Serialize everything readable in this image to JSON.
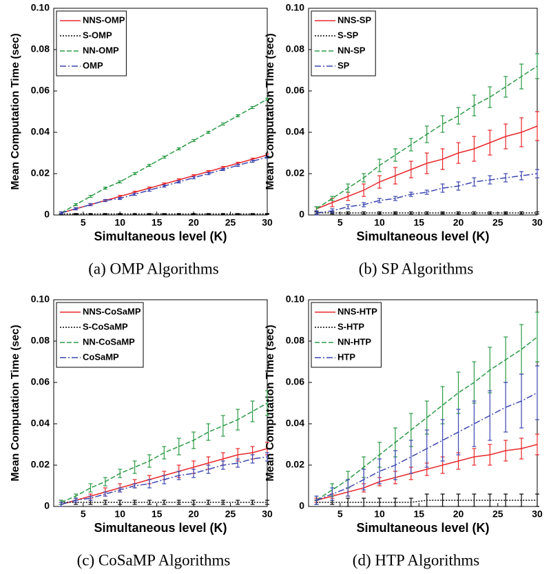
{
  "chart_data": [
    {
      "type": "line",
      "caption": "(a) OMP Algorithms",
      "xlabel": "Simultaneous level (K)",
      "ylabel": "Mean  Computation  Time  (sec)",
      "x": [
        2,
        4,
        6,
        8,
        10,
        12,
        14,
        16,
        18,
        20,
        22,
        24,
        26,
        28,
        30
      ],
      "xlim": [
        1,
        30
      ],
      "xticks": [
        5,
        10,
        15,
        20,
        25,
        30
      ],
      "ylim": [
        0,
        0.1
      ],
      "yticks": [
        0,
        0.02,
        0.04,
        0.06,
        0.08,
        {
          "value": 0.1,
          "label": "0.10"
        }
      ],
      "legend": "upper left",
      "series": [
        {
          "name": "NNS-OMP",
          "color": "#e8262a",
          "dash": "solid",
          "values": [
            0.001,
            0.003,
            0.005,
            0.007,
            0.009,
            0.011,
            0.013,
            0.015,
            0.017,
            0.019,
            0.021,
            0.023,
            0.025,
            0.027,
            0.029
          ],
          "errors": [
            0.0005,
            0.0005,
            0.0005,
            0.0005,
            0.0005,
            0.0005,
            0.0005,
            0.0005,
            0.0005,
            0.0005,
            0.0005,
            0.0005,
            0.0005,
            0.0005,
            0.0005
          ]
        },
        {
          "name": "S-OMP",
          "color": "#000000",
          "dash": "dotted",
          "values": [
            0.0005,
            0.0005,
            0.0005,
            0.0005,
            0.0005,
            0.0005,
            0.0005,
            0.0005,
            0.0005,
            0.0005,
            0.0005,
            0.0005,
            0.0005,
            0.0005,
            0.0005
          ],
          "errors": [
            0.0002,
            0.0002,
            0.0002,
            0.0002,
            0.0002,
            0.0002,
            0.0002,
            0.0002,
            0.0002,
            0.0002,
            0.0002,
            0.0002,
            0.0002,
            0.0002,
            0.0002
          ]
        },
        {
          "name": "NN-OMP",
          "color": "#2a9a45",
          "dash": "dashed",
          "values": [
            0.001,
            0.005,
            0.009,
            0.013,
            0.016,
            0.02,
            0.024,
            0.028,
            0.032,
            0.036,
            0.04,
            0.044,
            0.048,
            0.052,
            0.056
          ],
          "errors": [
            0.0005,
            0.0005,
            0.0005,
            0.0005,
            0.0005,
            0.0005,
            0.0005,
            0.0005,
            0.0005,
            0.0005,
            0.0005,
            0.0005,
            0.0005,
            0.0005,
            0.0005
          ]
        },
        {
          "name": "OMP",
          "color": "#3a45b0",
          "dash": "dashdot",
          "values": [
            0.001,
            0.003,
            0.005,
            0.007,
            0.008,
            0.01,
            0.012,
            0.014,
            0.016,
            0.018,
            0.02,
            0.022,
            0.024,
            0.026,
            0.028
          ],
          "errors": [
            0.0005,
            0.0005,
            0.0005,
            0.0005,
            0.0005,
            0.0005,
            0.0005,
            0.0005,
            0.0005,
            0.0005,
            0.0005,
            0.0005,
            0.0005,
            0.0005,
            0.0005
          ]
        }
      ]
    },
    {
      "type": "line",
      "caption": "(b) SP Algorithms",
      "xlabel": "Simultaneous level (K)",
      "ylabel": "Mean  Computation  Time  (sec)",
      "x": [
        2,
        4,
        6,
        8,
        10,
        12,
        14,
        16,
        18,
        20,
        22,
        24,
        26,
        28,
        30
      ],
      "xlim": [
        1,
        30
      ],
      "xticks": [
        5,
        10,
        15,
        20,
        25,
        30
      ],
      "ylim": [
        0,
        0.1
      ],
      "yticks": [
        0,
        0.02,
        0.04,
        0.06,
        0.08,
        {
          "value": 0.1,
          "label": "0.10"
        }
      ],
      "legend": "upper left",
      "series": [
        {
          "name": "NNS-SP",
          "color": "#e8262a",
          "dash": "solid",
          "values": [
            0.003,
            0.006,
            0.009,
            0.012,
            0.016,
            0.019,
            0.022,
            0.025,
            0.027,
            0.03,
            0.032,
            0.035,
            0.038,
            0.04,
            0.043
          ],
          "errors": [
            0.001,
            0.002,
            0.002,
            0.003,
            0.003,
            0.004,
            0.004,
            0.005,
            0.005,
            0.005,
            0.006,
            0.006,
            0.006,
            0.007,
            0.007
          ]
        },
        {
          "name": "S-SP",
          "color": "#000000",
          "dash": "dotted",
          "values": [
            0.001,
            0.001,
            0.001,
            0.001,
            0.001,
            0.001,
            0.001,
            0.001,
            0.001,
            0.001,
            0.001,
            0.001,
            0.001,
            0.001,
            0.001
          ],
          "errors": [
            0.0005,
            0.0005,
            0.0005,
            0.0005,
            0.0005,
            0.0005,
            0.0005,
            0.0005,
            0.0005,
            0.0005,
            0.0005,
            0.0005,
            0.0005,
            0.0005,
            0.0005
          ]
        },
        {
          "name": "NN-SP",
          "color": "#2a9a45",
          "dash": "dashed",
          "values": [
            0.003,
            0.008,
            0.013,
            0.018,
            0.024,
            0.029,
            0.034,
            0.039,
            0.044,
            0.048,
            0.053,
            0.057,
            0.062,
            0.067,
            0.072
          ],
          "errors": [
            0.001,
            0.001,
            0.002,
            0.002,
            0.003,
            0.003,
            0.003,
            0.004,
            0.004,
            0.004,
            0.005,
            0.005,
            0.005,
            0.006,
            0.006
          ]
        },
        {
          "name": "SP",
          "color": "#3a45b0",
          "dash": "dashdot",
          "values": [
            0.001,
            0.002,
            0.004,
            0.005,
            0.007,
            0.008,
            0.01,
            0.011,
            0.013,
            0.014,
            0.016,
            0.017,
            0.018,
            0.019,
            0.02
          ],
          "errors": [
            0.001,
            0.001,
            0.001,
            0.001,
            0.001,
            0.001,
            0.001,
            0.001,
            0.002,
            0.002,
            0.002,
            0.002,
            0.002,
            0.002,
            0.002
          ]
        }
      ]
    },
    {
      "type": "line",
      "caption": "(c) CoSaMP Algorithms",
      "xlabel": "Simultaneous level (K)",
      "ylabel": "Mean  Computation  Time  (sec)",
      "x": [
        2,
        4,
        6,
        8,
        10,
        12,
        14,
        16,
        18,
        20,
        22,
        24,
        26,
        28,
        30
      ],
      "xlim": [
        1,
        30
      ],
      "xticks": [
        5,
        10,
        15,
        20,
        25,
        30
      ],
      "ylim": [
        0,
        0.1
      ],
      "yticks": [
        0,
        0.02,
        0.04,
        0.06,
        0.08,
        {
          "value": 0.1,
          "label": "0.10"
        }
      ],
      "legend": "upper left",
      "series": [
        {
          "name": "NNS-CoSaMP",
          "color": "#e8262a",
          "dash": "solid",
          "values": [
            0.001,
            0.003,
            0.005,
            0.007,
            0.009,
            0.011,
            0.013,
            0.015,
            0.017,
            0.019,
            0.021,
            0.023,
            0.025,
            0.026,
            0.028
          ],
          "errors": [
            0.001,
            0.001,
            0.001,
            0.002,
            0.002,
            0.002,
            0.002,
            0.002,
            0.003,
            0.003,
            0.003,
            0.003,
            0.003,
            0.003,
            0.003
          ]
        },
        {
          "name": "S-CoSaMP",
          "color": "#000000",
          "dash": "dotted",
          "values": [
            0.002,
            0.002,
            0.002,
            0.002,
            0.002,
            0.002,
            0.002,
            0.002,
            0.002,
            0.002,
            0.002,
            0.002,
            0.002,
            0.002,
            0.002
          ],
          "errors": [
            0.001,
            0.001,
            0.001,
            0.001,
            0.001,
            0.001,
            0.001,
            0.001,
            0.001,
            0.001,
            0.001,
            0.001,
            0.001,
            0.001,
            0.001
          ]
        },
        {
          "name": "NN-CoSaMP",
          "color": "#2a9a45",
          "dash": "dashed",
          "values": [
            0.002,
            0.005,
            0.009,
            0.012,
            0.016,
            0.019,
            0.022,
            0.026,
            0.029,
            0.032,
            0.036,
            0.039,
            0.042,
            0.046,
            0.05
          ],
          "errors": [
            0.001,
            0.001,
            0.002,
            0.002,
            0.002,
            0.003,
            0.003,
            0.003,
            0.004,
            0.004,
            0.004,
            0.005,
            0.005,
            0.005,
            0.006
          ]
        },
        {
          "name": "CoSaMP",
          "color": "#3a45b0",
          "dash": "dashdot",
          "values": [
            0.001,
            0.003,
            0.004,
            0.006,
            0.008,
            0.01,
            0.011,
            0.013,
            0.015,
            0.016,
            0.018,
            0.02,
            0.021,
            0.023,
            0.024
          ],
          "errors": [
            0.001,
            0.001,
            0.001,
            0.001,
            0.001,
            0.001,
            0.002,
            0.002,
            0.002,
            0.002,
            0.002,
            0.002,
            0.002,
            0.002,
            0.002
          ]
        }
      ]
    },
    {
      "type": "line",
      "caption": "(d) HTP Algorithms",
      "xlabel": "Simultaneous level (K)",
      "ylabel": "Mean  Computation  Time  (sec)",
      "x": [
        2,
        4,
        6,
        8,
        10,
        12,
        14,
        16,
        18,
        20,
        22,
        24,
        26,
        28,
        30
      ],
      "xlim": [
        1,
        30
      ],
      "xticks": [
        5,
        10,
        15,
        20,
        25,
        30
      ],
      "ylim": [
        0,
        0.1
      ],
      "yticks": [
        0,
        0.02,
        0.04,
        0.06,
        0.08,
        {
          "value": 0.1,
          "label": "0.10"
        }
      ],
      "legend": "upper left",
      "series": [
        {
          "name": "NNS-HTP",
          "color": "#e8262a",
          "dash": "solid",
          "values": [
            0.003,
            0.005,
            0.007,
            0.009,
            0.012,
            0.014,
            0.016,
            0.018,
            0.02,
            0.022,
            0.024,
            0.025,
            0.027,
            0.028,
            0.03
          ],
          "errors": [
            0.001,
            0.001,
            0.002,
            0.002,
            0.002,
            0.003,
            0.003,
            0.003,
            0.004,
            0.004,
            0.004,
            0.005,
            0.005,
            0.005,
            0.005
          ]
        },
        {
          "name": "S-HTP",
          "color": "#000000",
          "dash": "dotted",
          "values": [
            0.002,
            0.002,
            0.002,
            0.002,
            0.002,
            0.002,
            0.002,
            0.003,
            0.003,
            0.003,
            0.003,
            0.003,
            0.003,
            0.003,
            0.003
          ],
          "errors": [
            0.001,
            0.001,
            0.002,
            0.002,
            0.002,
            0.002,
            0.002,
            0.003,
            0.003,
            0.003,
            0.003,
            0.003,
            0.003,
            0.003,
            0.003
          ]
        },
        {
          "name": "NN-HTP",
          "color": "#2a9a45",
          "dash": "dashed",
          "values": [
            0.003,
            0.008,
            0.013,
            0.019,
            0.025,
            0.031,
            0.037,
            0.043,
            0.049,
            0.055,
            0.06,
            0.066,
            0.071,
            0.076,
            0.082
          ],
          "errors": [
            0.002,
            0.003,
            0.004,
            0.005,
            0.006,
            0.007,
            0.008,
            0.008,
            0.009,
            0.01,
            0.01,
            0.011,
            0.011,
            0.012,
            0.012
          ]
        },
        {
          "name": "HTP",
          "color": "#3a45b0",
          "dash": "dashdot",
          "values": [
            0.003,
            0.006,
            0.009,
            0.013,
            0.017,
            0.02,
            0.024,
            0.028,
            0.032,
            0.036,
            0.04,
            0.044,
            0.048,
            0.051,
            0.055
          ],
          "errors": [
            0.002,
            0.003,
            0.004,
            0.005,
            0.006,
            0.007,
            0.008,
            0.009,
            0.01,
            0.011,
            0.011,
            0.012,
            0.012,
            0.013,
            0.013
          ]
        }
      ]
    }
  ]
}
